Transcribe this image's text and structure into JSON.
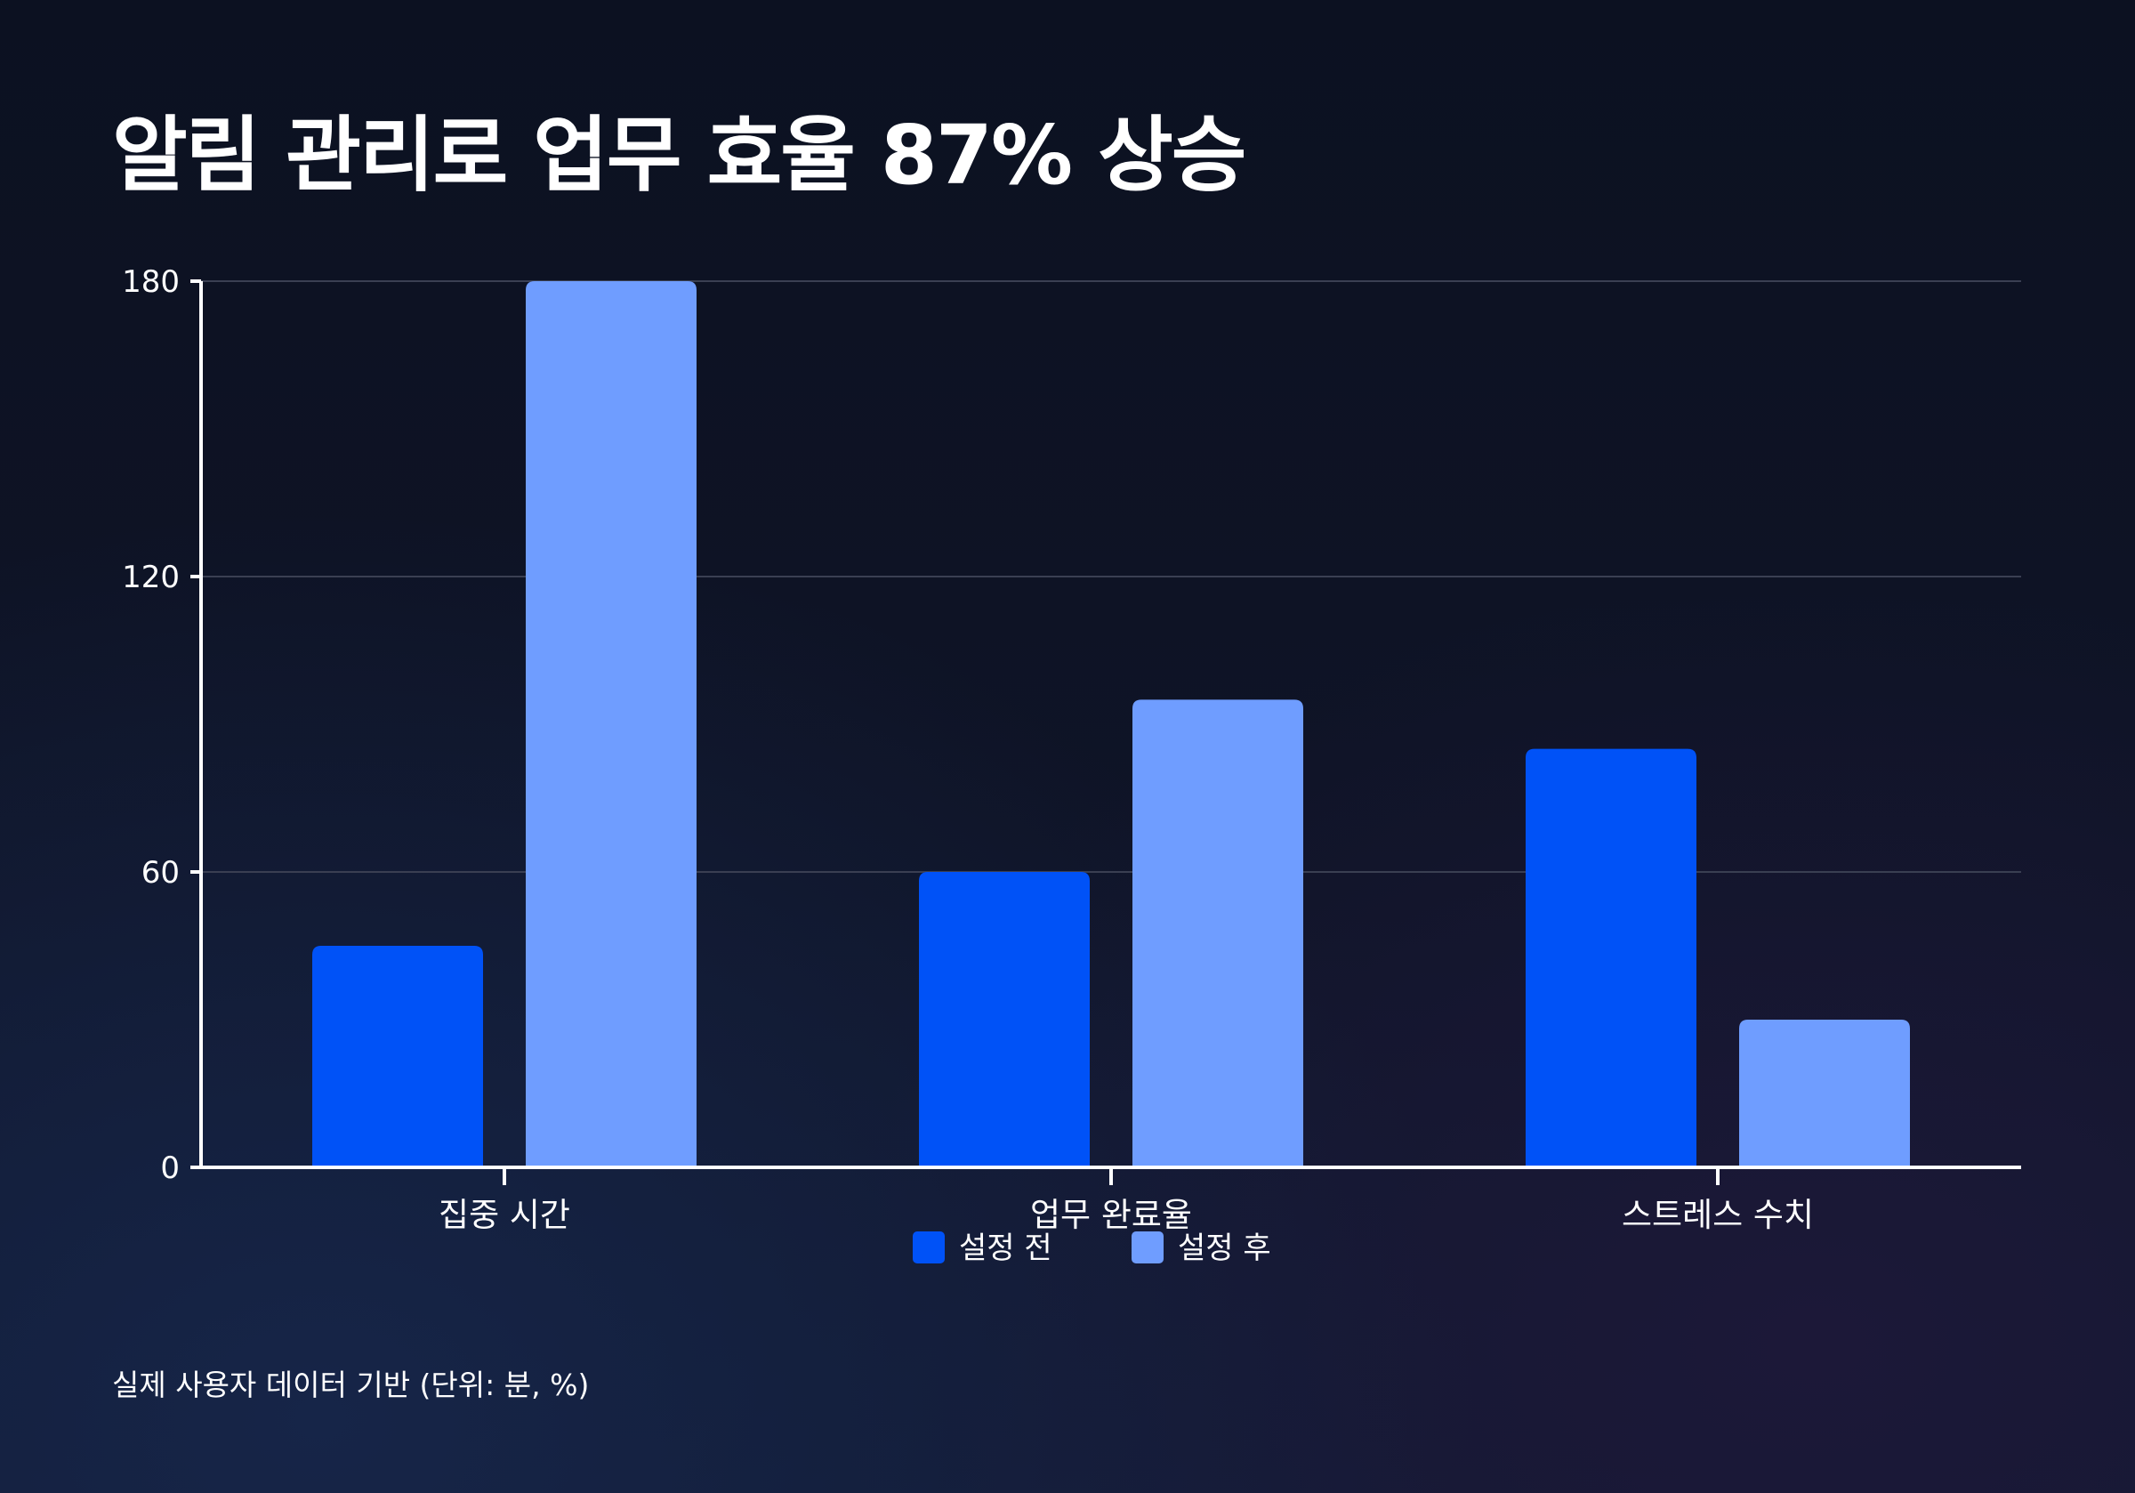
{
  "title": "알림 관리로 업무 효율 87% 상승",
  "footnote": "실제 사용자 데이터 기반 (단위: 분, %)",
  "colors": {
    "before": "#0052f7",
    "after": "#6f9dff",
    "grid": "#3a3f52",
    "axis": "#ffffff"
  },
  "chart_data": {
    "type": "bar",
    "categories": [
      "집중 시간",
      "업무 완료율",
      "스트레스 수치"
    ],
    "series": [
      {
        "name": "설정 전",
        "values": [
          45,
          60,
          85
        ]
      },
      {
        "name": "설정 후",
        "values": [
          180,
          95,
          30
        ]
      }
    ],
    "ylim": [
      0,
      180
    ],
    "yticks": [
      0,
      60,
      120,
      180
    ],
    "grid": true,
    "legend_position": "bottom-center"
  }
}
